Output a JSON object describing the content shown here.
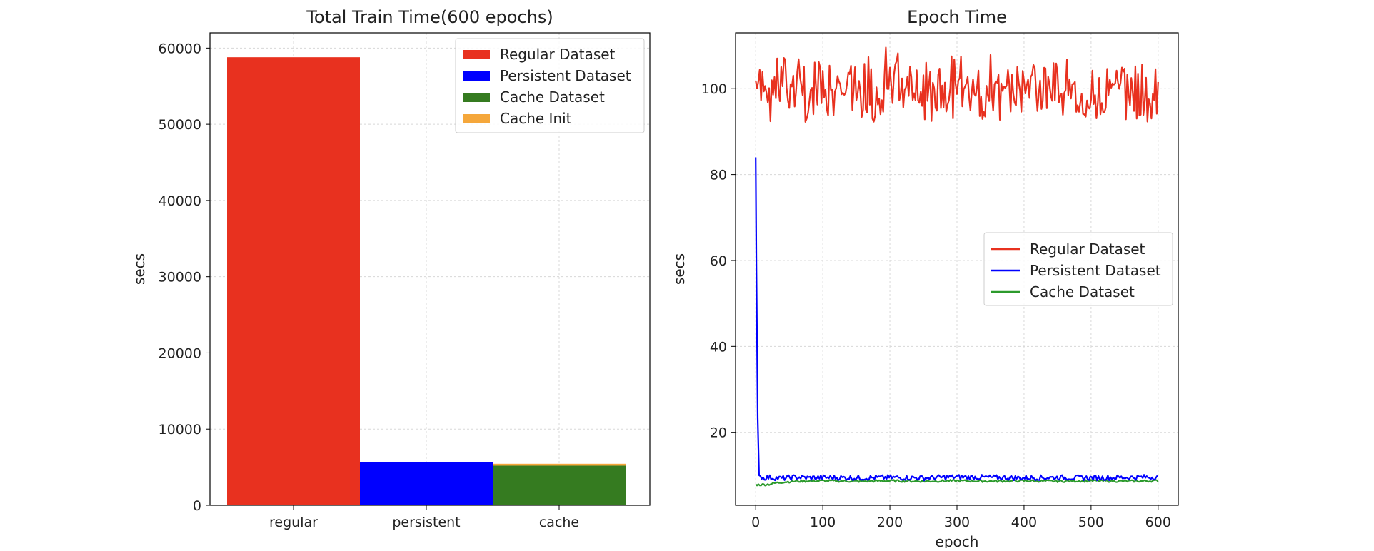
{
  "chart_data": [
    {
      "type": "bar",
      "title": "Total Train Time(600 epochs)",
      "xlabel": "",
      "ylabel": "secs",
      "ylim": [
        0,
        62000
      ],
      "yticks": [
        0,
        10000,
        20000,
        30000,
        40000,
        50000,
        60000
      ],
      "categories": [
        "regular",
        "persistent",
        "cache"
      ],
      "grid": true,
      "legend_position": "top-right",
      "series": [
        {
          "name": "Regular Dataset",
          "color": "#e8311f",
          "values": [
            58800,
            0,
            0
          ]
        },
        {
          "name": "Persistent Dataset",
          "color": "#0000ff",
          "values": [
            0,
            5700,
            0
          ]
        },
        {
          "name": "Cache Dataset",
          "color": "#357b20",
          "values": [
            0,
            0,
            5200
          ]
        },
        {
          "name": "Cache Init",
          "color": "#f5a73b",
          "values": [
            0,
            0,
            250
          ]
        }
      ]
    },
    {
      "type": "line",
      "title": "Epoch Time",
      "xlabel": "epoch",
      "ylabel": "secs",
      "xlim": [
        -30,
        630
      ],
      "ylim": [
        3,
        113
      ],
      "xticks": [
        0,
        100,
        200,
        300,
        400,
        500,
        600
      ],
      "yticks": [
        20,
        40,
        60,
        80,
        100
      ],
      "grid": true,
      "legend_position": "center-right",
      "series": [
        {
          "name": "Regular Dataset",
          "color": "#e8311f",
          "x": [
            0,
            20,
            40,
            60,
            80,
            100,
            120,
            140,
            160,
            180,
            200,
            220,
            240,
            260,
            280,
            300,
            320,
            340,
            360,
            380,
            400,
            420,
            440,
            460,
            480,
            500,
            520,
            540,
            560,
            580,
            600
          ],
          "y": [
            99,
            100,
            98,
            101,
            97,
            99,
            100,
            98,
            96,
            100,
            101,
            99,
            97,
            100,
            98,
            101,
            99,
            98,
            100,
            97,
            99,
            100,
            98,
            99,
            97,
            96,
            98,
            101,
            99,
            97,
            98
          ],
          "ymin": [
            93,
            92,
            93,
            92,
            92,
            93,
            92,
            93,
            93,
            92,
            91,
            92,
            93,
            92,
            93,
            92,
            92,
            93,
            92,
            93,
            92,
            93,
            92,
            93,
            93,
            93,
            93,
            93,
            92,
            92,
            93
          ],
          "ymax": [
            105,
            106,
            108,
            109,
            107,
            106,
            108,
            106,
            107,
            109,
            110,
            109,
            108,
            106,
            109,
            108,
            107,
            109,
            108,
            106,
            107,
            108,
            106,
            107,
            106,
            105,
            106,
            110,
            108,
            107,
            106
          ]
        },
        {
          "name": "Persistent Dataset",
          "color": "#0000ff",
          "x": [
            0,
            1,
            2,
            5,
            10,
            20,
            40,
            60,
            80,
            100,
            150,
            200,
            250,
            300,
            350,
            400,
            450,
            500,
            550,
            600
          ],
          "y": [
            84,
            60,
            30,
            10,
            9.2,
            9.3,
            9.1,
            9.4,
            9.2,
            9.3,
            9.2,
            9.3,
            9.2,
            9.4,
            9.3,
            9.2,
            9.3,
            9.2,
            9.3,
            9.4
          ]
        },
        {
          "name": "Cache Dataset",
          "color": "#2c9a2c",
          "x": [
            0,
            10,
            20,
            30,
            40,
            60,
            100,
            150,
            200,
            250,
            300,
            350,
            400,
            450,
            500,
            550,
            600
          ],
          "y": [
            7.8,
            7.8,
            7.9,
            8.2,
            8.4,
            8.6,
            8.7,
            8.6,
            8.7,
            8.6,
            8.7,
            8.6,
            8.7,
            8.6,
            8.7,
            8.6,
            8.7
          ]
        }
      ]
    }
  ]
}
